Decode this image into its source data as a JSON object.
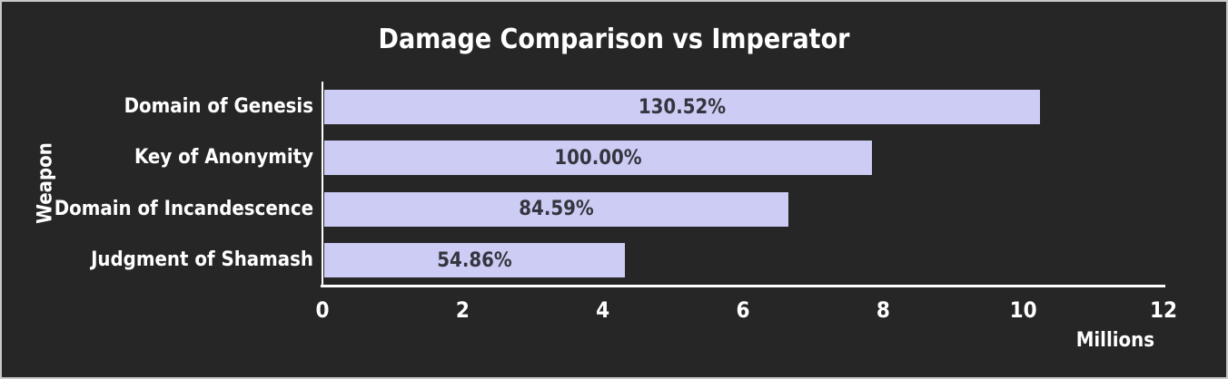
{
  "window": {
    "background_color": "#262626",
    "border_color": "#c9c9c9"
  },
  "chart_data": {
    "type": "bar",
    "orientation": "horizontal",
    "title": "Damage Comparison vs Imperator",
    "ylabel": "Weapon",
    "xlabel": "",
    "x_unit_label": "Millions",
    "categories": [
      "Domain of Genesis",
      "Key of Anonymity",
      "Domain of Incandescence",
      "Judgment of Shamash"
    ],
    "series": [
      {
        "name": "Damage",
        "values_millions": [
          10.21,
          7.82,
          6.62,
          4.29
        ],
        "bar_labels": [
          "130.52%",
          "100.00%",
          "84.59%",
          "54.86%"
        ]
      }
    ],
    "xlim": [
      0,
      12
    ],
    "x_ticks": [
      0,
      2,
      4,
      6,
      8,
      10,
      12
    ],
    "grid": false,
    "legend": false,
    "colors": {
      "bar_fill": "#cdccf4",
      "bar_value_text": "#35353f",
      "axis_line": "#ffffff",
      "text": "#ffffff"
    }
  }
}
